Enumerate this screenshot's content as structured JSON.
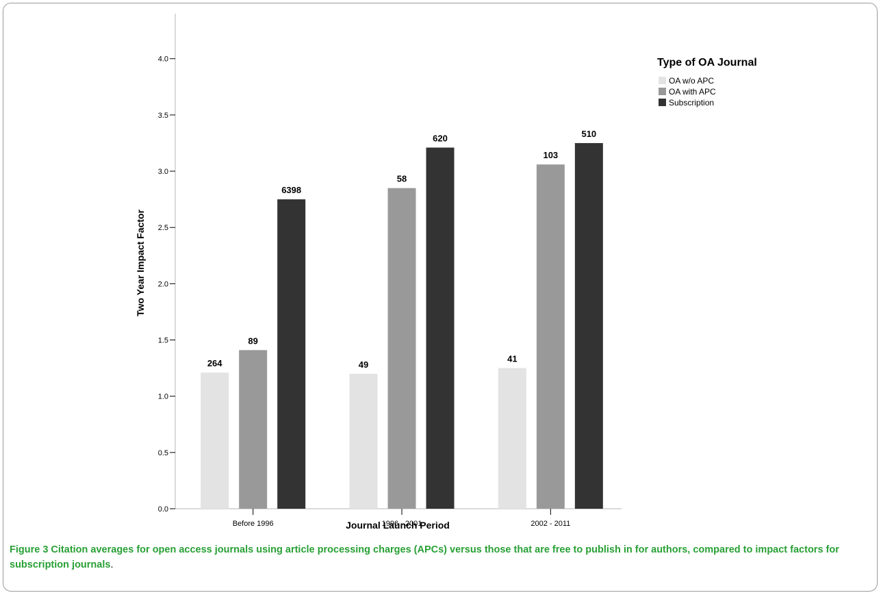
{
  "chart_data": {
    "type": "bar",
    "categories": [
      "Before 1996",
      "1996 - 2001",
      "2002 - 2011"
    ],
    "series": [
      {
        "name": "OA w/o APC",
        "values": [
          1.21,
          1.2,
          1.25
        ],
        "labels": [
          "264",
          "49",
          "41"
        ],
        "color": "#e3e3e3"
      },
      {
        "name": "OA with APC",
        "values": [
          1.41,
          2.85,
          3.06
        ],
        "labels": [
          "89",
          "58",
          "103"
        ],
        "color": "#999999"
      },
      {
        "name": "Subscription",
        "values": [
          2.75,
          3.21,
          3.25
        ],
        "labels": [
          "6398",
          "620",
          "510"
        ],
        "color": "#333333"
      }
    ],
    "xlabel": "Journal Launch Period",
    "ylabel": "Two Year Impact Factor",
    "ylim": [
      0,
      4.4
    ],
    "yticks": [
      "0.0",
      "0.5",
      "1.0",
      "1.5",
      "2.0",
      "2.5",
      "3.0",
      "3.5",
      "4.0"
    ],
    "legend": {
      "title": "Type of OA Journal",
      "placement": "top-right"
    },
    "grid": false
  },
  "caption": {
    "figure_number": "Figure 3",
    "text": " Citation averages for open access journals using article processing charges (APCs) versus those that are free to publish in for authors, compared to impact factors for subscription journals",
    "end": "."
  }
}
